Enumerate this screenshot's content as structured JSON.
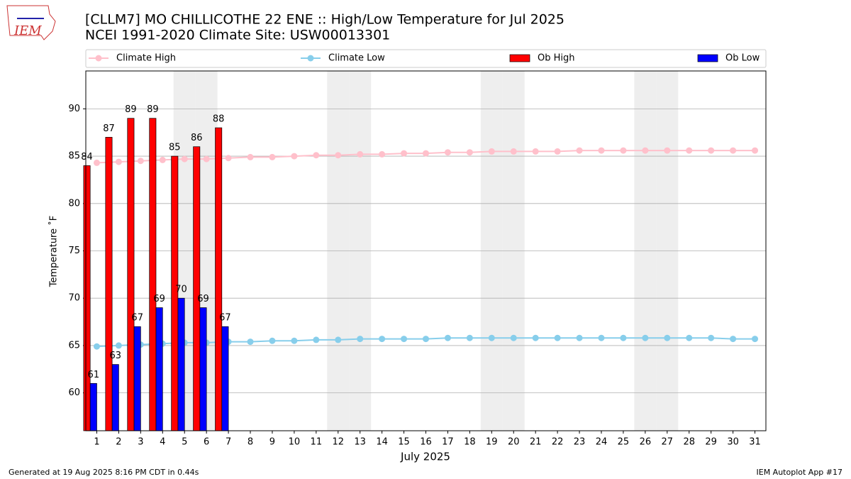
{
  "chart_data": {
    "type": "bar",
    "title": "[CLLM7] MO CHILLICOTHE 22 ENE :: High/Low Temperature for Jul 2025",
    "subtitle": "NCEI 1991-2020 Climate Site: USW00013301",
    "xlabel": "July 2025",
    "ylabel": "Temperature ˚F",
    "logo_text": "IEM",
    "footer_left": "Generated at 19 Aug 2025 8:16 PM CDT in 0.44s",
    "footer_right": "IEM Autoplot App #17",
    "x": [
      1,
      2,
      3,
      4,
      5,
      6,
      7,
      8,
      9,
      10,
      11,
      12,
      13,
      14,
      15,
      16,
      17,
      18,
      19,
      20,
      21,
      22,
      23,
      24,
      25,
      26,
      27,
      28,
      29,
      30,
      31
    ],
    "xlim": [
      0.5,
      31.5
    ],
    "xticks": [
      1,
      2,
      3,
      4,
      5,
      6,
      7,
      8,
      9,
      10,
      11,
      12,
      13,
      14,
      15,
      16,
      17,
      18,
      19,
      20,
      21,
      22,
      23,
      24,
      25,
      26,
      27,
      28,
      29,
      30,
      31
    ],
    "ylim": [
      56,
      94
    ],
    "yticks": [
      60,
      65,
      70,
      75,
      80,
      85,
      90
    ],
    "grid": true,
    "shaded_days": [
      5,
      6,
      12,
      13,
      19,
      20,
      26,
      27
    ],
    "shade_color": "#eeeeee",
    "legend": "top",
    "series": [
      {
        "name": "Climate High",
        "type": "line",
        "color": "#ffc0cb",
        "values": [
          84.3,
          84.4,
          84.5,
          84.6,
          84.7,
          84.7,
          84.8,
          84.9,
          84.9,
          85.0,
          85.1,
          85.1,
          85.2,
          85.2,
          85.3,
          85.3,
          85.4,
          85.4,
          85.5,
          85.5,
          85.5,
          85.5,
          85.6,
          85.6,
          85.6,
          85.6,
          85.6,
          85.6,
          85.6,
          85.6,
          85.6
        ]
      },
      {
        "name": "Climate Low",
        "type": "line",
        "color": "#87ceeb",
        "values": [
          64.9,
          65.0,
          65.1,
          65.2,
          65.3,
          65.3,
          65.4,
          65.4,
          65.5,
          65.5,
          65.6,
          65.6,
          65.7,
          65.7,
          65.7,
          65.7,
          65.8,
          65.8,
          65.8,
          65.8,
          65.8,
          65.8,
          65.8,
          65.8,
          65.8,
          65.8,
          65.8,
          65.8,
          65.8,
          65.7,
          65.7
        ]
      },
      {
        "name": "Ob High",
        "type": "bar",
        "color": "#ff0000",
        "values": [
          84,
          87,
          89,
          89,
          85,
          86,
          88,
          null,
          null,
          null,
          null,
          null,
          null,
          null,
          null,
          null,
          null,
          null,
          null,
          null,
          null,
          null,
          null,
          null,
          null,
          null,
          null,
          null,
          null,
          null,
          null
        ]
      },
      {
        "name": "Ob Low",
        "type": "bar",
        "color": "#0000ff",
        "values": [
          61,
          63,
          67,
          69,
          70,
          69,
          67,
          null,
          null,
          null,
          null,
          null,
          null,
          null,
          null,
          null,
          null,
          null,
          null,
          null,
          null,
          null,
          null,
          null,
          null,
          null,
          null,
          null,
          null,
          null,
          null
        ]
      }
    ]
  }
}
